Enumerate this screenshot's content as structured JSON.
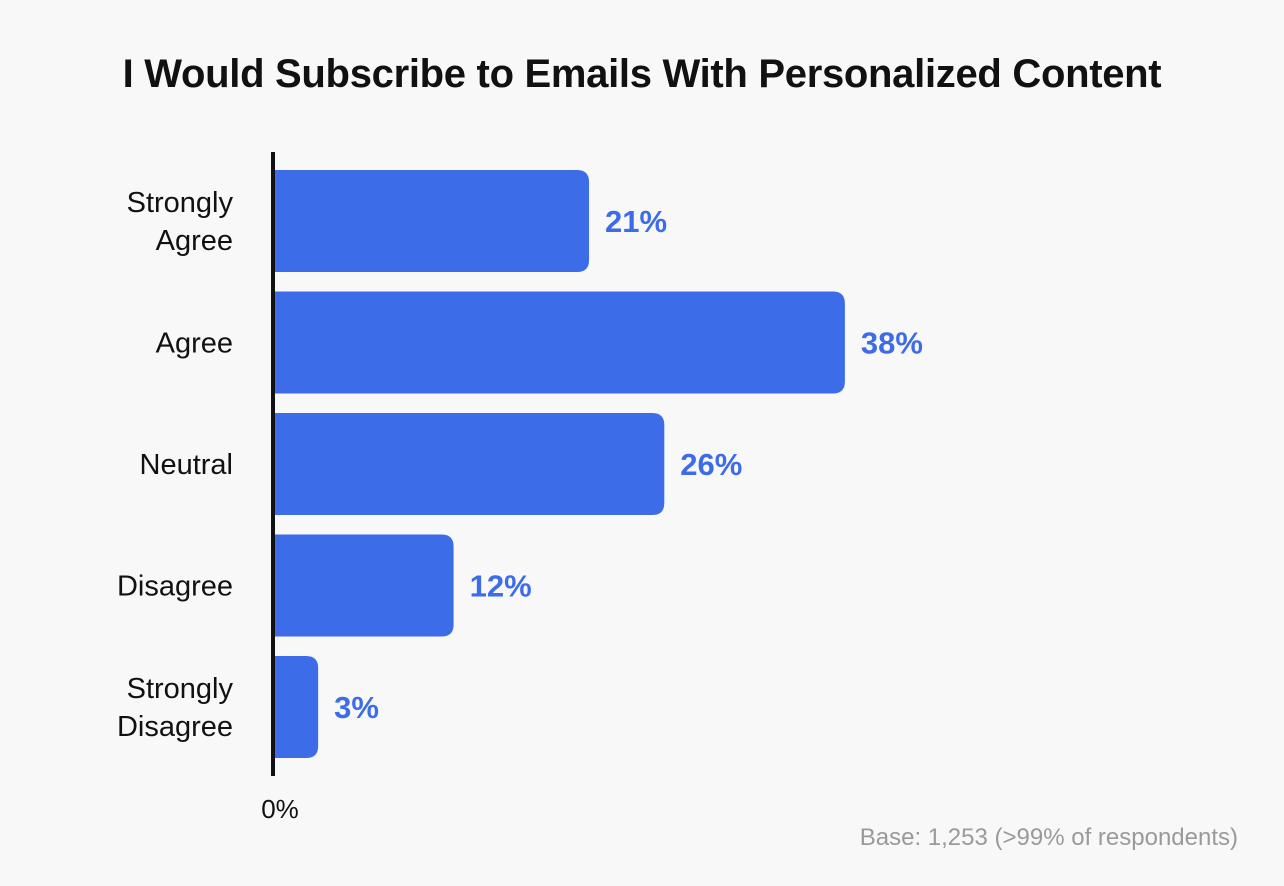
{
  "chart_data": {
    "type": "bar",
    "orientation": "horizontal",
    "title": "I Would Subscribe to Emails With Personalized Content",
    "categories": [
      [
        "Strongly",
        "Agree"
      ],
      [
        "Agree"
      ],
      [
        "Neutral"
      ],
      [
        "Disagree"
      ],
      [
        "Strongly",
        "Disagree"
      ]
    ],
    "values": [
      21,
      38,
      26,
      12,
      3
    ],
    "value_labels": [
      "21%",
      "38%",
      "26%",
      "12%",
      "3%"
    ],
    "x_tick_labels": [
      "0%"
    ],
    "xlim": [
      0,
      100
    ],
    "bar_color": "#3d6ce9",
    "label_color": "#3d6ce9",
    "legend": "none",
    "grid": false
  },
  "footnote": "Base: 1,253 (>99% of respondents)"
}
